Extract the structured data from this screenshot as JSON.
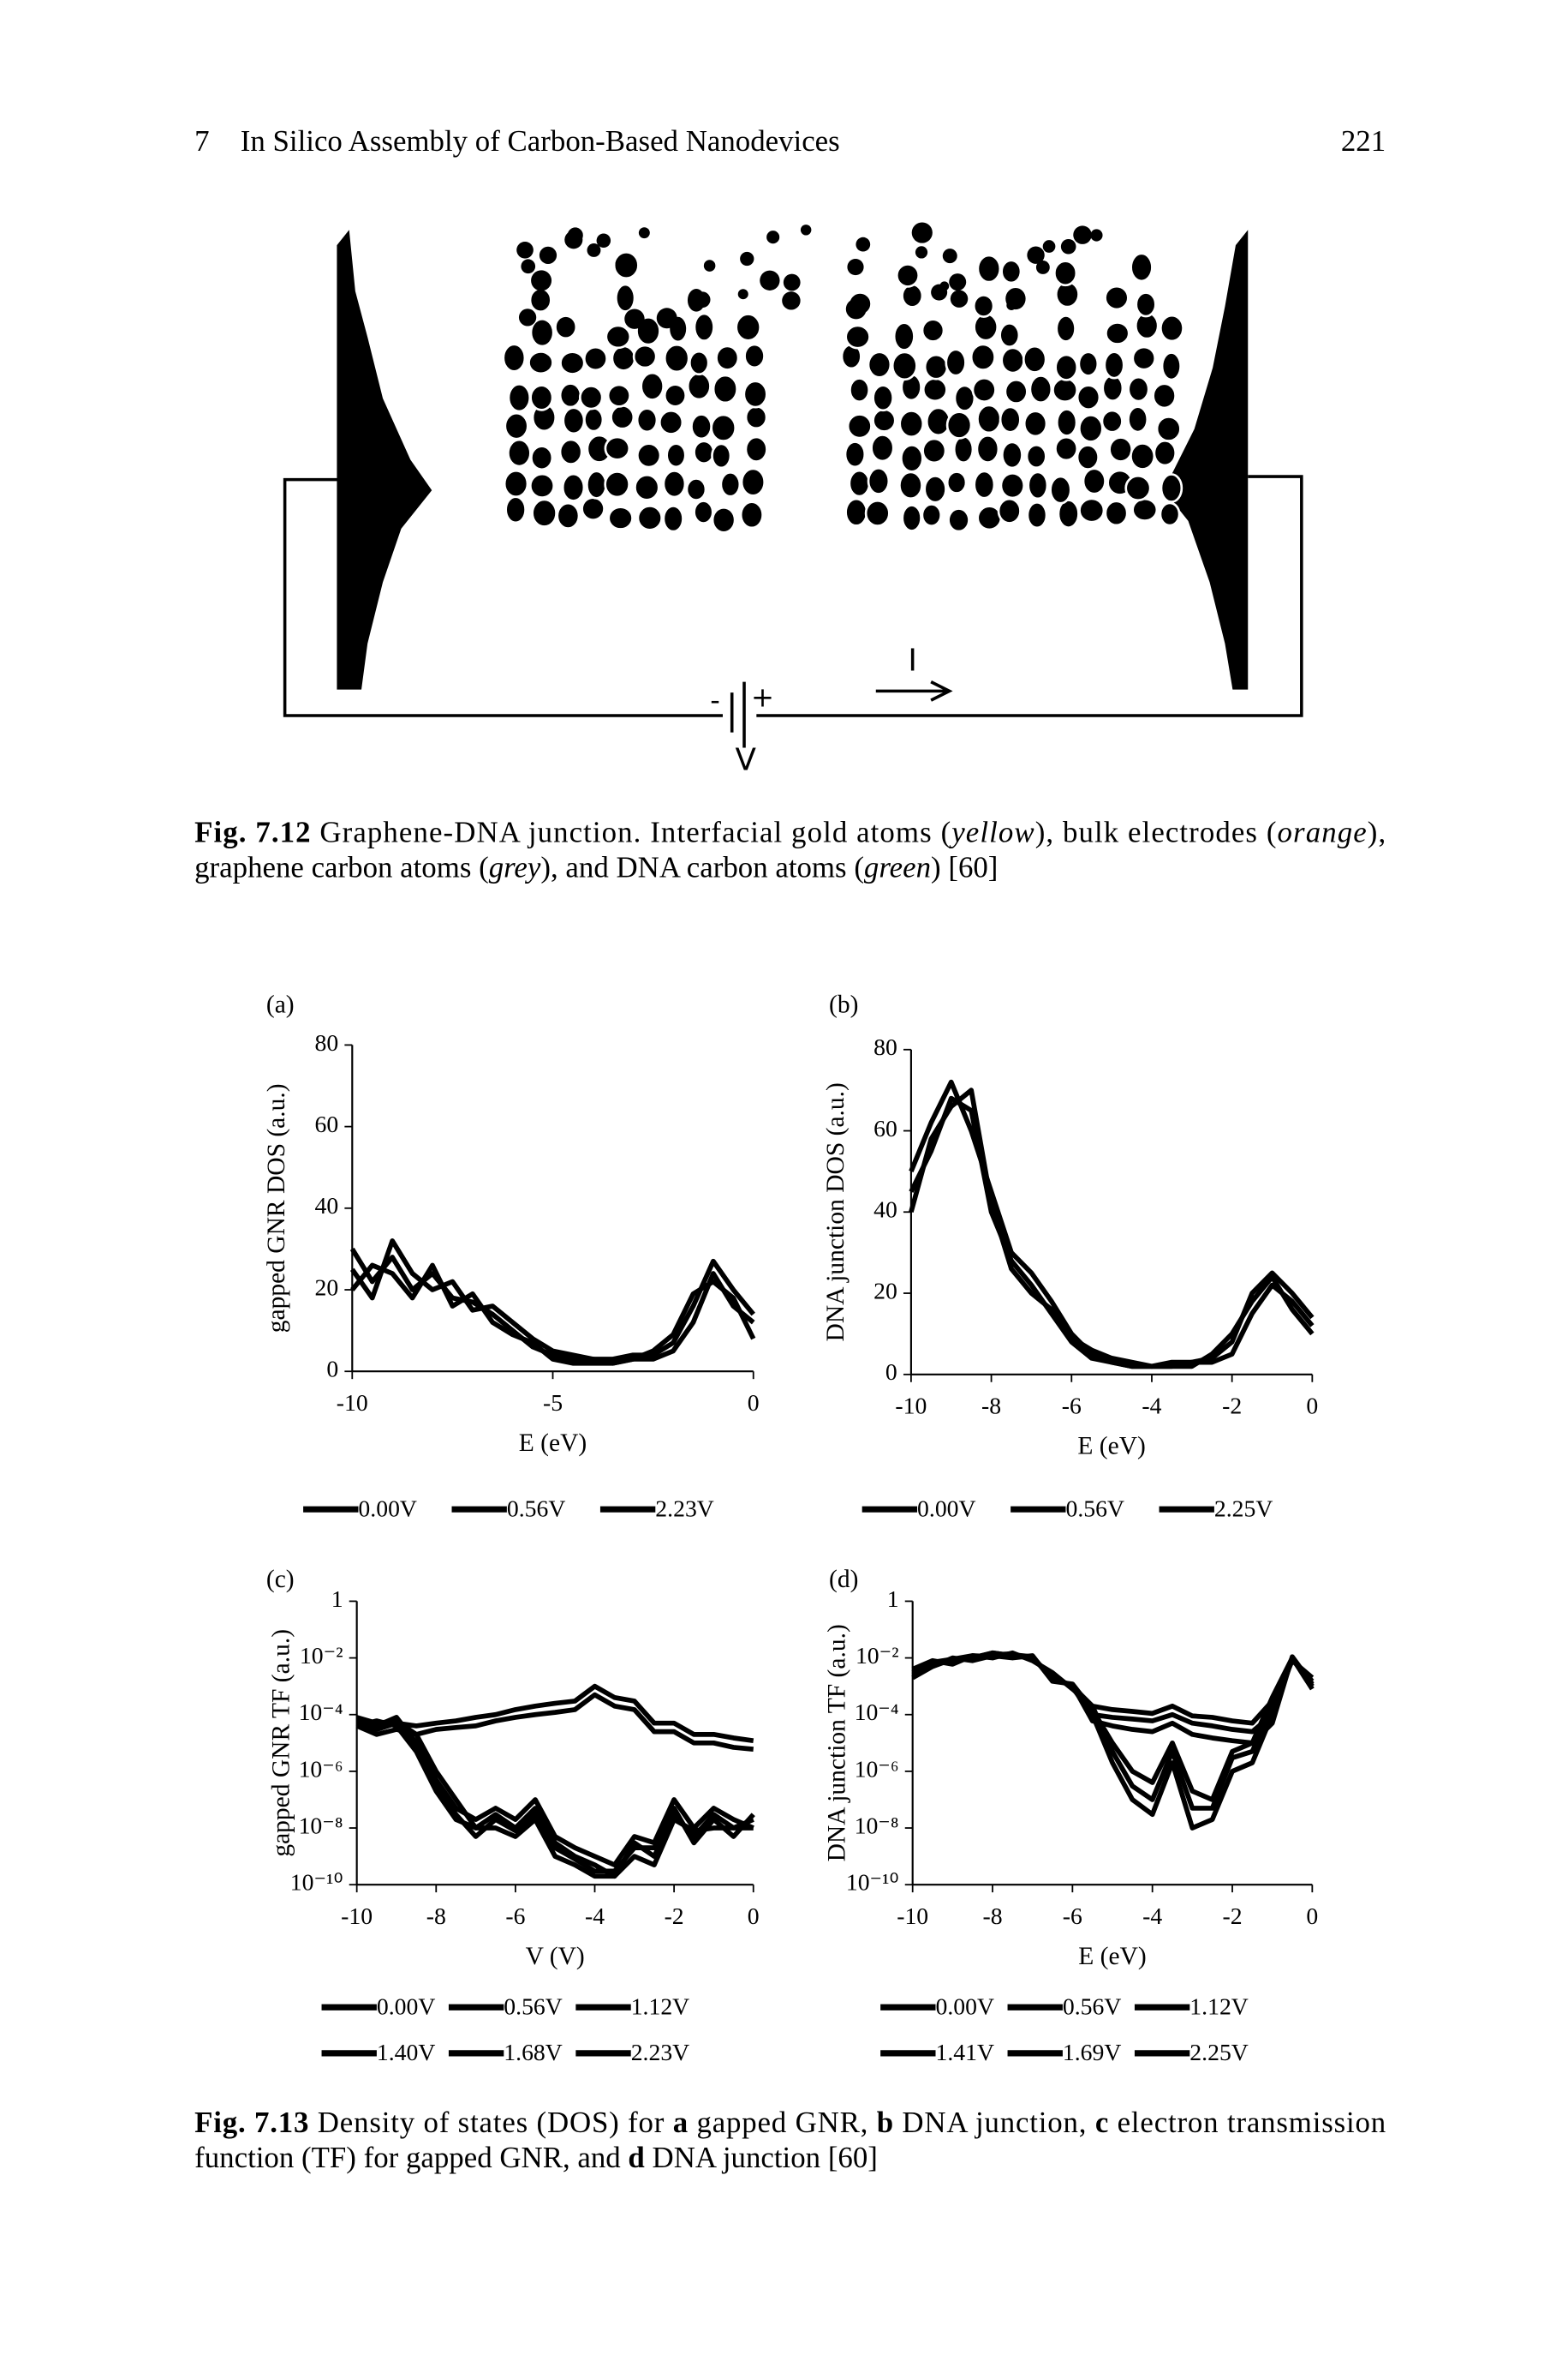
{
  "header": {
    "chapter_number": "7",
    "chapter_title": "In Silico Assembly of Carbon-Based Nanodevices",
    "page_number": "221"
  },
  "figure_7_12": {
    "current_label": "I",
    "voltage_label": "V",
    "plus": "+",
    "minus": "-",
    "caption": {
      "lines": [
        [
          {
            "text": "Fig. 7.12",
            "style": "bold"
          },
          " Graphene-DNA junction. Interfacial gold atoms (",
          {
            "text": "yellow",
            "style": "italic"
          },
          "), bulk electrodes (",
          {
            "text": "orange",
            "style": "italic"
          },
          "),"
        ],
        [
          "graphene carbon atoms (",
          {
            "text": "grey",
            "style": "italic"
          },
          "), and DNA carbon atoms (",
          {
            "text": "green",
            "style": "italic"
          },
          ") [60]"
        ]
      ]
    }
  },
  "chart_data": [
    {
      "type": "line",
      "panel": "(a)",
      "xlabel": "E (eV)",
      "ylabel": "gapped GNR DOS (a.u.)",
      "log_y": false,
      "xlim": [
        -10,
        0
      ],
      "xticks": [
        -10,
        -5,
        0
      ],
      "ylim": [
        0,
        80
      ],
      "yticks": [
        0,
        20,
        40,
        60,
        80
      ],
      "x": [
        -10,
        -9.5,
        -9,
        -8.5,
        -8,
        -7.5,
        -7,
        -6.5,
        -6,
        -5.5,
        -5,
        -4.5,
        -4,
        -3.5,
        -3,
        -2.5,
        -2,
        -1.5,
        -1,
        -0.5,
        0
      ],
      "series": [
        {
          "name": "0.00V",
          "color": "#000000",
          "values": [
            30,
            22,
            28,
            20,
            24,
            18,
            17,
            14,
            10,
            6,
            4,
            3,
            3,
            2,
            3,
            3,
            5,
            12,
            24,
            16,
            12
          ]
        },
        {
          "name": "0.56V",
          "color": "#000000",
          "values": [
            25,
            18,
            32,
            24,
            20,
            22,
            15,
            16,
            12,
            8,
            5,
            4,
            3,
            3,
            4,
            4,
            7,
            16,
            27,
            20,
            14
          ]
        },
        {
          "name": "2.23V",
          "color": "#000000",
          "values": [
            20,
            26,
            24,
            18,
            26,
            16,
            19,
            12,
            9,
            7,
            3,
            2,
            2,
            2,
            3,
            5,
            9,
            19,
            22,
            18,
            8
          ]
        }
      ]
    },
    {
      "type": "line",
      "panel": "(b)",
      "xlabel": "E (eV)",
      "ylabel": "DNA junction DOS (a.u.)",
      "log_y": false,
      "xlim": [
        -10,
        0
      ],
      "xticks": [
        -10,
        -8,
        -6,
        -4,
        -2,
        0
      ],
      "ylim": [
        0,
        80
      ],
      "yticks": [
        0,
        20,
        40,
        60,
        80
      ],
      "x": [
        -10,
        -9.5,
        -9,
        -8.5,
        -8,
        -7.5,
        -7,
        -6.5,
        -6,
        -5.5,
        -5,
        -4.5,
        -4,
        -3.5,
        -3,
        -2.5,
        -2,
        -1.5,
        -1,
        -0.5,
        0
      ],
      "series": [
        {
          "name": "0.00V",
          "color": "#000000",
          "values": [
            45,
            55,
            68,
            65,
            40,
            28,
            22,
            15,
            8,
            4,
            3,
            2,
            2,
            2,
            3,
            3,
            5,
            15,
            22,
            18,
            12
          ]
        },
        {
          "name": "0.56V",
          "color": "#000000",
          "values": [
            50,
            62,
            72,
            60,
            45,
            30,
            25,
            18,
            10,
            5,
            3,
            2,
            2,
            3,
            3,
            4,
            8,
            20,
            25,
            20,
            14
          ]
        },
        {
          "name": "2.25V",
          "color": "#000000",
          "values": [
            40,
            58,
            66,
            70,
            42,
            26,
            20,
            16,
            9,
            6,
            4,
            3,
            2,
            2,
            2,
            5,
            10,
            18,
            24,
            16,
            10
          ]
        }
      ]
    },
    {
      "type": "line",
      "panel": "(c)",
      "xlabel": "V (V)",
      "ylabel": "gapped GNR TF (a.u.)",
      "log_y": true,
      "xlim": [
        -10,
        0
      ],
      "xticks": [
        -10,
        -8,
        -6,
        -4,
        -2,
        0
      ],
      "ylim": [
        1e-10,
        1
      ],
      "yticks": [
        {
          "value": 1e-10,
          "label": "10⁻¹⁰"
        },
        {
          "value": 1e-08,
          "label": "10⁻⁸"
        },
        {
          "value": 1e-06,
          "label": "10⁻⁶"
        },
        {
          "value": 0.0001,
          "label": "10⁻⁴"
        },
        {
          "value": 0.01,
          "label": "10⁻²"
        },
        1
      ],
      "x": [
        -10,
        -9.5,
        -9,
        -8.5,
        -8,
        -7.5,
        -7,
        -6.5,
        -6,
        -5.5,
        -5,
        -4.5,
        -4,
        -3.5,
        -3,
        -2.5,
        -2,
        -1.5,
        -1,
        -0.5,
        0
      ],
      "series": [
        {
          "name": "0.00V",
          "color": "#000000",
          "values": [
            8e-05,
            5e-05,
            6e-05,
            2e-05,
            1e-06,
            1e-07,
            1e-08,
            3e-08,
            1e-08,
            5e-08,
            3e-09,
            1e-09,
            5e-10,
            2e-10,
            3e-09,
            1e-09,
            3e-08,
            5e-09,
            3e-08,
            1e-08,
            2e-08
          ]
        },
        {
          "name": "0.56V",
          "color": "#000000",
          "values": [
            6e-05,
            4e-05,
            8e-05,
            1e-05,
            5e-07,
            5e-08,
            2e-08,
            5e-08,
            2e-08,
            1e-07,
            5e-09,
            2e-09,
            1e-09,
            5e-10,
            5e-09,
            3e-09,
            1e-07,
            1e-08,
            5e-08,
            2e-08,
            1e-08
          ]
        },
        {
          "name": "1.12V",
          "color": "#000000",
          "values": [
            5e-05,
            3e-05,
            5e-05,
            8e-06,
            3e-07,
            3e-08,
            5e-09,
            2e-08,
            8e-09,
            3e-08,
            2e-09,
            8e-10,
            3e-10,
            3e-10,
            2e-09,
            2e-09,
            5e-08,
            3e-09,
            2e-08,
            5e-09,
            3e-08
          ]
        },
        {
          "name": "1.40V",
          "color": "#000000",
          "values": [
            4e-05,
            6e-05,
            4e-05,
            5e-06,
            2e-07,
            2e-08,
            1e-08,
            1e-08,
            5e-09,
            2e-08,
            1e-09,
            5e-10,
            2e-10,
            2e-10,
            1e-09,
            5e-10,
            2e-08,
            8e-09,
            1e-08,
            1e-08,
            1e-08
          ]
        },
        {
          "name": "1.68V",
          "color": "#000000",
          "values": [
            5e-05,
            3e-05,
            5e-05,
            4e-05,
            5e-05,
            6e-05,
            8e-05,
            0.0001,
            0.00015,
            0.0002,
            0.00025,
            0.0003,
            0.001,
            0.0004,
            0.0003,
            5e-05,
            5e-05,
            2e-05,
            2e-05,
            1.5e-05,
            1.2e-05
          ]
        },
        {
          "name": "2.23V",
          "color": "#000000",
          "values": [
            4e-05,
            2e-05,
            3e-05,
            2e-05,
            3e-05,
            3.5e-05,
            4e-05,
            6e-05,
            8e-05,
            0.0001,
            0.00012,
            0.00015,
            0.0005,
            0.0002,
            0.00015,
            2.5e-05,
            2.5e-05,
            1e-05,
            1e-05,
            7e-06,
            6e-06
          ]
        }
      ]
    },
    {
      "type": "line",
      "panel": "(d)",
      "xlabel": "E (eV)",
      "ylabel": "DNA junction TF (a.u.)",
      "log_y": true,
      "xlim": [
        -10,
        0
      ],
      "xticks": [
        -10,
        -8,
        -6,
        -4,
        -2,
        0
      ],
      "ylim": [
        1e-10,
        1
      ],
      "yticks": [
        {
          "value": 1e-10,
          "label": "10⁻¹⁰"
        },
        {
          "value": 1e-08,
          "label": "10⁻⁸"
        },
        {
          "value": 1e-06,
          "label": "10⁻⁶"
        },
        {
          "value": 0.0001,
          "label": "10⁻⁴"
        },
        {
          "value": 0.01,
          "label": "10⁻²"
        },
        1
      ],
      "x": [
        -10,
        -9.5,
        -9,
        -8.5,
        -8,
        -7.5,
        -7,
        -6.5,
        -6,
        -5.5,
        -5,
        -4.5,
        -4,
        -3.5,
        -3,
        -2.5,
        -2,
        -1.5,
        -1,
        -0.5,
        0
      ],
      "series": [
        {
          "name": "0.00V",
          "color": "#000000",
          "values": [
            0.003,
            0.006,
            0.008,
            0.01,
            0.015,
            0.012,
            0.01,
            0.002,
            0.001,
            0.0001,
            2e-06,
            1e-07,
            3e-08,
            2e-06,
            1e-08,
            2e-08,
            1e-06,
            2e-06,
            0.0001,
            0.01,
            0.001
          ]
        },
        {
          "name": "0.56V",
          "color": "#000000",
          "values": [
            0.004,
            0.008,
            0.006,
            0.012,
            0.01,
            0.015,
            0.008,
            0.003,
            0.0008,
            0.0002,
            5e-06,
            3e-07,
            1e-07,
            5e-06,
            5e-08,
            5e-08,
            3e-06,
            5e-06,
            0.0002,
            0.008,
            0.002
          ]
        },
        {
          "name": "1.12V",
          "color": "#000000",
          "values": [
            0.002,
            0.005,
            0.01,
            0.008,
            0.012,
            0.01,
            0.012,
            0.0015,
            0.0012,
            0.00015,
            1e-05,
            1e-06,
            4e-07,
            1e-05,
            2e-07,
            1e-07,
            5e-06,
            1e-05,
            0.0004,
            0.01,
            0.0008
          ]
        },
        {
          "name": "1.41V",
          "color": "#000000",
          "values": [
            0.003,
            0.006,
            0.008,
            0.01,
            0.015,
            0.012,
            0.01,
            0.002,
            0.001,
            0.0002,
            0.00015,
            0.00013,
            0.00011,
            0.0002,
            9e-05,
            8e-05,
            6e-05,
            5e-05,
            0.0003,
            0.01,
            0.001
          ]
        },
        {
          "name": "1.69V",
          "color": "#000000",
          "values": [
            0.004,
            0.007,
            0.009,
            0.011,
            0.013,
            0.014,
            0.009,
            0.0025,
            0.0009,
            0.0001,
            8e-05,
            7e-05,
            6e-05,
            0.0001,
            5e-05,
            4e-05,
            3e-05,
            2.5e-05,
            0.0001,
            0.009,
            0.0015
          ]
        },
        {
          "name": "2.25V",
          "color": "#000000",
          "values": [
            0.0025,
            0.005,
            0.009,
            0.012,
            0.011,
            0.013,
            0.011,
            0.0018,
            0.0011,
            6e-05,
            4e-05,
            3e-05,
            2.5e-05,
            5e-05,
            2e-05,
            1.5e-05,
            1.2e-05,
            1e-05,
            5e-05,
            0.011,
            0.0012
          ]
        }
      ]
    }
  ],
  "figure_7_13": {
    "caption": {
      "lines": [
        [
          {
            "text": "Fig. 7.13",
            "style": "bold"
          },
          " Density of states (DOS) for ",
          {
            "text": "a",
            "style": "bold"
          },
          " gapped GNR, ",
          {
            "text": "b",
            "style": "bold"
          },
          " DNA junction, ",
          {
            "text": "c",
            "style": "bold"
          },
          " electron transmission"
        ],
        [
          "function (TF) for gapped GNR, and ",
          {
            "text": "d",
            "style": "bold"
          },
          " DNA junction [60]"
        ]
      ]
    }
  }
}
